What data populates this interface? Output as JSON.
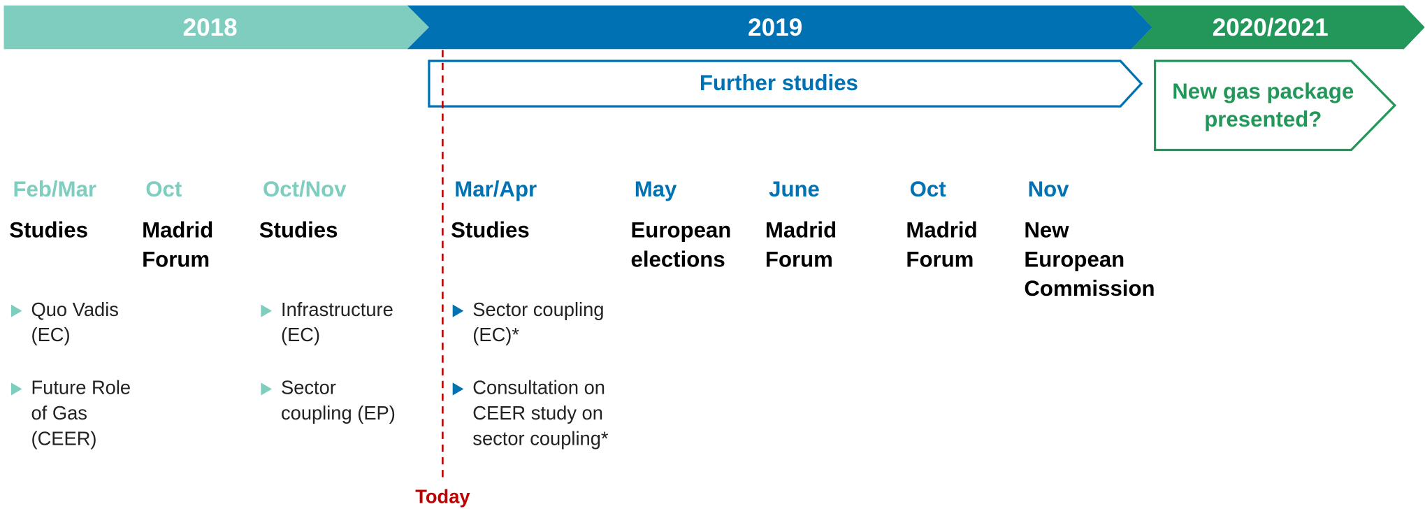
{
  "phases": [
    {
      "label": "2018",
      "color": "#7fcdbf"
    },
    {
      "label": "2019",
      "color": "#0071b3"
    },
    {
      "label": "2020/2021",
      "color": "#23975a"
    }
  ],
  "bands": [
    {
      "lines": [
        "Further studies"
      ],
      "color": "#0071b3"
    },
    {
      "lines": [
        "New gas package",
        "presented?"
      ],
      "color": "#23975a"
    }
  ],
  "today": "Today",
  "events": [
    {
      "date": "Feb/Mar",
      "phase": 0,
      "title": [
        "Studies"
      ],
      "items": [
        [
          "Quo Vadis",
          "(EC)"
        ],
        [
          "Future Role",
          "of Gas",
          "(CEER)"
        ]
      ]
    },
    {
      "date": "Oct",
      "phase": 0,
      "title": [
        "Madrid",
        "Forum"
      ],
      "items": []
    },
    {
      "date": "Oct/Nov",
      "phase": 0,
      "title": [
        "Studies"
      ],
      "items": [
        [
          "Infrastructure",
          "(EC)"
        ],
        [
          "Sector",
          "coupling (EP)"
        ]
      ]
    },
    {
      "date": "Mar/Apr",
      "phase": 1,
      "title": [
        "Studies"
      ],
      "items": [
        [
          "Sector coupling",
          "(EC)*"
        ],
        [
          "Consultation on",
          "CEER study on",
          "sector coupling*"
        ]
      ]
    },
    {
      "date": "May",
      "phase": 1,
      "title": [
        "European",
        "elections"
      ],
      "items": []
    },
    {
      "date": "June",
      "phase": 1,
      "title": [
        "Madrid",
        "Forum"
      ],
      "items": []
    },
    {
      "date": "Oct",
      "phase": 1,
      "title": [
        "Madrid",
        "Forum"
      ],
      "items": []
    },
    {
      "date": "Nov",
      "phase": 1,
      "title": [
        "New",
        "European",
        "Commission"
      ],
      "items": []
    }
  ]
}
